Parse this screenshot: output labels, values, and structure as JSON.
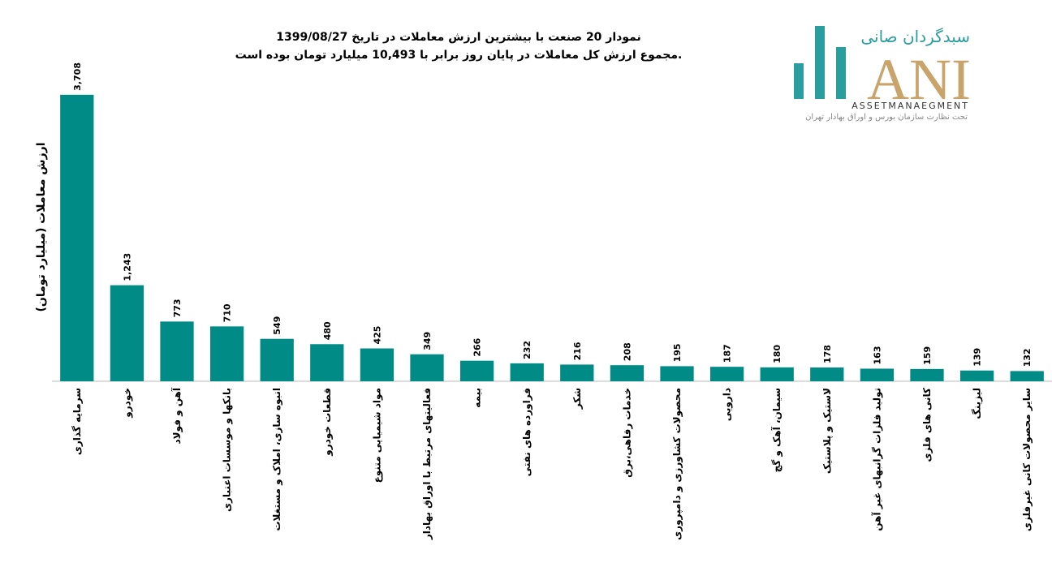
{
  "chart_data": {
    "type": "bar",
    "title": "نمودار  20 صنعت با بیشترین ارزش معاملات در تاریخ 1399/08/27",
    "subtitle": "مجموع ارزش  کل معاملات در پایان روز برابر با 10,493 میلیارد تومان بوده است.",
    "y_label": "ارزش معاملات (میلیارد تومان)",
    "categories": [
      "سرمایه گذاری",
      "خودرو",
      "آهن و فولاد",
      "بانکها و موسسات اعتباری",
      "انبوه سازی، املاک و مستغلات",
      "قطعات خودرو",
      "مواد شیمیایی متنوع",
      "فعالیتهای مرتبط با اوراق بهادار",
      "بیمه",
      "فراورده های نفتی",
      "شکر",
      "خدمات رفاهی،برق",
      "محصولات کشاورزی و دامپروری",
      "دارویی",
      "سیمان، آهک و گچ",
      "لاستیک و پلاستیک",
      "تولید فلزات گرانبهای غیر آهن",
      "کانی های فلزی",
      "لیزینگ",
      "سایر محصولات کانی غیرفلزی"
    ],
    "values": [
      3708,
      1243,
      773,
      710,
      549,
      480,
      425,
      349,
      266,
      232,
      216,
      208,
      195,
      187,
      180,
      178,
      163,
      159,
      139,
      132
    ],
    "value_labels": [
      "3,708",
      "1,243",
      "773",
      "710",
      "549",
      "480",
      "425",
      "349",
      "266",
      "232",
      "216",
      "208",
      "195",
      "187",
      "180",
      "178",
      "163",
      "159",
      "139",
      "132"
    ],
    "color": "#008b86",
    "ylim": [
      0,
      4000
    ]
  },
  "logo": {
    "name": "سبدگردان صانی",
    "mark": "ANI",
    "english": "ASSETMANAEGMENT",
    "note": "تحت نظارت سازمان بورس و اوراق بهادار تهران"
  }
}
